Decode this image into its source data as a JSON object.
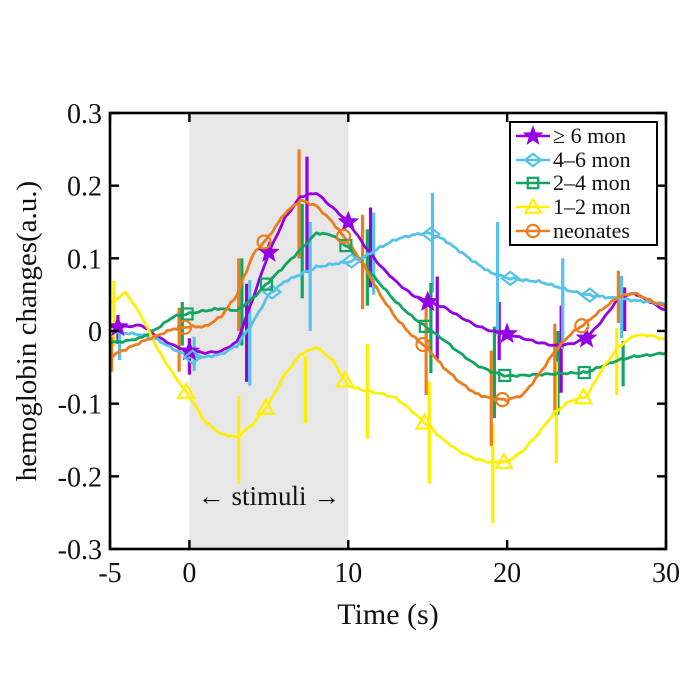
{
  "figure": {
    "background": "#ffffff"
  },
  "chart_data": {
    "type": "line",
    "title": "",
    "xlabel": "Time (s)",
    "ylabel": "hemoglobin changes(a.u.)",
    "xlim": [
      -5,
      30
    ],
    "ylim": [
      -0.3,
      0.3
    ],
    "xticks": [
      -5,
      0,
      10,
      20,
      30
    ],
    "yticks": [
      0.3,
      0.2,
      0.1,
      0,
      -0.1,
      -0.2,
      -0.3
    ],
    "grid": false,
    "legend_position": "top-right",
    "stimulus_band": {
      "x_start": 0,
      "x_end": 10,
      "color": "#e7e7e7",
      "label": "← stimuli →"
    },
    "x": [
      -5,
      -4,
      -3,
      -2,
      -1,
      0,
      1,
      2,
      3,
      4,
      5,
      6,
      7,
      8,
      9,
      10,
      11,
      12,
      13,
      14,
      15,
      16,
      17,
      18,
      19,
      20,
      21,
      22,
      23,
      24,
      25,
      26,
      27,
      28,
      29,
      30
    ],
    "series": [
      {
        "name": "≥ 6 mon",
        "color": "#9400e3",
        "marker": "star",
        "marker_filled": true,
        "marker_x": [
          -4.5,
          0,
          5,
          10,
          15,
          20,
          25
        ],
        "marker_dx": 0,
        "values": [
          0.005,
          0.006,
          0.008,
          -0.008,
          -0.02,
          -0.028,
          -0.03,
          -0.028,
          -0.015,
          0.045,
          0.108,
          0.155,
          0.185,
          0.19,
          0.17,
          0.15,
          0.118,
          0.09,
          0.068,
          0.05,
          0.04,
          0.033,
          0.02,
          0.008,
          0.0,
          -0.004,
          -0.01,
          -0.016,
          -0.02,
          -0.018,
          -0.01,
          0.015,
          0.045,
          0.052,
          0.04,
          0.028
        ],
        "error_bars": [
          [
            -4.5,
            -0.018,
            0.022
          ],
          [
            0.0,
            -0.06,
            -0.01
          ],
          [
            3.6,
            -0.07,
            0.065
          ],
          [
            7.4,
            0.08,
            0.24
          ],
          [
            11.4,
            0.06,
            0.17
          ],
          [
            15.6,
            -0.04,
            0.075
          ],
          [
            19.5,
            -0.04,
            0.04
          ],
          [
            23.4,
            -0.085,
            0.035
          ],
          [
            27.4,
            0.0,
            0.06
          ]
        ]
      },
      {
        "name": "4–6 mon",
        "color": "#56c2ea",
        "marker": "diamond",
        "marker_filled": false,
        "marker_x": [
          0,
          5,
          10,
          15,
          20,
          25
        ],
        "marker_dx": 0.2,
        "values": [
          0.0,
          -0.003,
          -0.005,
          -0.012,
          -0.025,
          -0.036,
          -0.036,
          -0.032,
          -0.02,
          0.012,
          0.05,
          0.068,
          0.078,
          0.088,
          0.092,
          0.095,
          0.102,
          0.115,
          0.126,
          0.132,
          0.135,
          0.126,
          0.11,
          0.094,
          0.08,
          0.073,
          0.07,
          0.068,
          0.062,
          0.055,
          0.05,
          0.047,
          0.045,
          0.042,
          0.04,
          0.037
        ],
        "error_bars": [
          [
            -4.4,
            -0.04,
            0.012
          ],
          [
            0.3,
            -0.055,
            -0.008
          ],
          [
            3.8,
            -0.075,
            0.07
          ],
          [
            7.6,
            0.0,
            0.15
          ],
          [
            11.6,
            0.05,
            0.163
          ],
          [
            15.3,
            0.053,
            0.19
          ],
          [
            19.4,
            -0.005,
            0.15
          ],
          [
            23.5,
            -0.025,
            0.1
          ],
          [
            27.2,
            -0.01,
            0.076
          ]
        ]
      },
      {
        "name": "2–4 mon",
        "color": "#10a560",
        "marker": "square",
        "marker_filled": false,
        "marker_x": [
          0,
          5,
          10,
          15,
          20,
          25
        ],
        "marker_dx": -0.15,
        "values": [
          -0.016,
          -0.014,
          -0.009,
          0.004,
          0.02,
          0.024,
          0.028,
          0.031,
          0.028,
          0.045,
          0.068,
          0.09,
          0.112,
          0.135,
          0.132,
          0.115,
          0.09,
          0.065,
          0.04,
          0.02,
          0.004,
          -0.012,
          -0.03,
          -0.046,
          -0.056,
          -0.062,
          -0.061,
          -0.06,
          -0.059,
          -0.058,
          -0.057,
          -0.048,
          -0.04,
          -0.035,
          -0.033,
          -0.03
        ],
        "error_bars": [
          [
            -0.45,
            -0.02,
            0.04
          ],
          [
            3.3,
            -0.02,
            0.1
          ],
          [
            7.1,
            0.045,
            0.175
          ],
          [
            11.2,
            0.035,
            0.14
          ],
          [
            15.2,
            -0.058,
            0.066
          ],
          [
            19.2,
            -0.12,
            0.006
          ],
          [
            23.2,
            -0.115,
            0.0
          ],
          [
            27.3,
            -0.076,
            -0.014
          ]
        ]
      },
      {
        "name": "1–2 mon",
        "color": "#fff000",
        "marker": "triangle",
        "marker_filled": false,
        "marker_x": [
          0,
          5,
          10,
          15,
          20,
          25
        ],
        "marker_dx": -0.2,
        "values": [
          0.038,
          0.053,
          0.02,
          -0.025,
          -0.06,
          -0.09,
          -0.125,
          -0.142,
          -0.146,
          -0.128,
          -0.1,
          -0.06,
          -0.032,
          -0.022,
          -0.04,
          -0.075,
          -0.082,
          -0.086,
          -0.092,
          -0.11,
          -0.13,
          -0.15,
          -0.166,
          -0.176,
          -0.181,
          -0.18,
          -0.165,
          -0.14,
          -0.112,
          -0.096,
          -0.09,
          -0.052,
          -0.022,
          -0.006,
          -0.006,
          -0.012
        ],
        "error_bars": [
          [
            -4.75,
            -0.021,
            0.069
          ],
          [
            3.1,
            -0.21,
            -0.09
          ],
          [
            7.3,
            -0.127,
            -0.035
          ],
          [
            11.2,
            -0.148,
            -0.018
          ],
          [
            15.1,
            -0.21,
            -0.07
          ],
          [
            19.1,
            -0.265,
            -0.128
          ],
          [
            23.1,
            -0.182,
            -0.042
          ],
          [
            26.9,
            -0.088,
            0.004
          ]
        ]
      },
      {
        "name": "neonates",
        "color": "#ec7d1e",
        "marker": "circle",
        "marker_filled": false,
        "marker_x": [
          0,
          5,
          10,
          15,
          20,
          25
        ],
        "marker_dx": -0.3,
        "values": [
          -0.035,
          -0.025,
          -0.015,
          -0.006,
          0.003,
          0.006,
          0.006,
          0.02,
          0.05,
          0.105,
          0.13,
          0.162,
          0.18,
          0.172,
          0.15,
          0.122,
          0.09,
          0.05,
          0.018,
          -0.006,
          -0.024,
          -0.05,
          -0.07,
          -0.086,
          -0.093,
          -0.095,
          -0.088,
          -0.06,
          -0.028,
          -0.004,
          0.012,
          0.03,
          0.047,
          0.052,
          0.042,
          0.033
        ],
        "error_bars": [
          [
            -4.9,
            -0.056,
            -0.008
          ],
          [
            -0.65,
            -0.056,
            0.032
          ],
          [
            3.1,
            0.0,
            0.1
          ],
          [
            6.9,
            0.1,
            0.25
          ],
          [
            10.9,
            0.03,
            0.16
          ],
          [
            14.9,
            -0.088,
            0.04
          ],
          [
            19.0,
            -0.158,
            -0.027
          ],
          [
            23.0,
            -0.115,
            0.01
          ],
          [
            27.0,
            0.011,
            0.083
          ]
        ]
      }
    ]
  },
  "legend": {
    "items": [
      {
        "label": "≥ 6 mon",
        "series_index": 0
      },
      {
        "label": "4–6 mon",
        "series_index": 1
      },
      {
        "label": "2–4 mon",
        "series_index": 2
      },
      {
        "label": "1–2 mon",
        "series_index": 3
      },
      {
        "label": "neonates",
        "series_index": 4
      }
    ]
  }
}
